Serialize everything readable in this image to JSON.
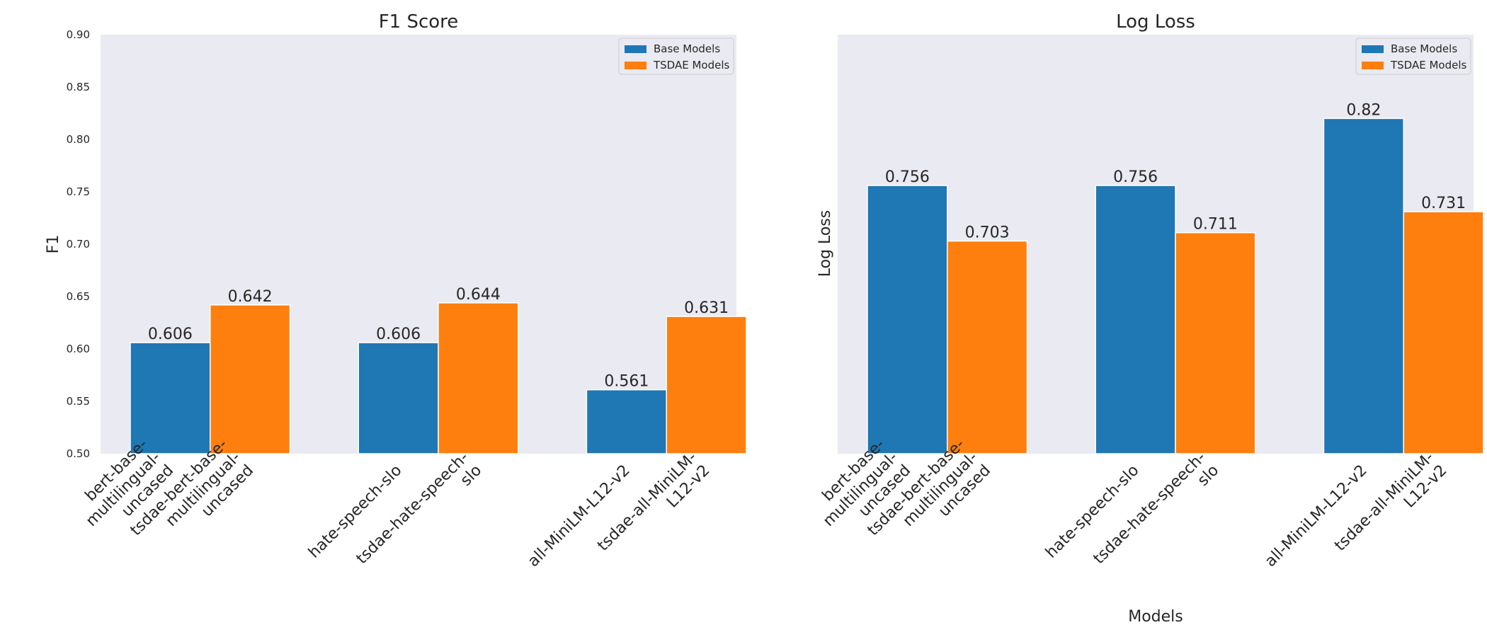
{
  "colors": {
    "base": "#1f77b4",
    "tsdae": "#ff7f0e",
    "panel": "#eaeaf2"
  },
  "chart_data": [
    {
      "type": "bar",
      "title": "F1 Score",
      "xlabel": "",
      "ylabel": "F1",
      "ylim": [
        0.5,
        0.9
      ],
      "yticks": [
        "0.50",
        "0.55",
        "0.60",
        "0.65",
        "0.70",
        "0.75",
        "0.80",
        "0.85",
        "0.90"
      ],
      "show_yticks": true,
      "grid": false,
      "legend_position": "top-right",
      "groups": [
        {
          "base_label": "bert-base-multilingual-uncased",
          "tsdae_label": "tsdae-bert-base-multilingual-uncased"
        },
        {
          "base_label": "hate-speech-slo",
          "tsdae_label": "tsdae-hate-speech-slo"
        },
        {
          "base_label": "all-MiniLM-L12-v2",
          "tsdae_label": "tsdae-all-MiniLM-L12-v2"
        }
      ],
      "series": [
        {
          "name": "Base Models",
          "values": [
            0.606,
            0.606,
            0.561
          ],
          "labels": [
            "0.606",
            "0.606",
            "0.561"
          ]
        },
        {
          "name": "TSDAE Models",
          "values": [
            0.642,
            0.644,
            0.631
          ],
          "labels": [
            "0.642",
            "0.644",
            "0.631"
          ]
        }
      ]
    },
    {
      "type": "bar",
      "title": "Log Loss",
      "xlabel": "Models",
      "ylabel": "Log Loss",
      "ylim": [
        0.5,
        0.9
      ],
      "yticks": [],
      "show_yticks": false,
      "grid": false,
      "legend_position": "top-right",
      "groups": [
        {
          "base_label": "bert-base-multilingual-uncased",
          "tsdae_label": "tsdae-bert-base-multilingual-uncased"
        },
        {
          "base_label": "hate-speech-slo",
          "tsdae_label": "tsdae-hate-speech-slo"
        },
        {
          "base_label": "all-MiniLM-L12-v2",
          "tsdae_label": "tsdae-all-MiniLM-L12-v2"
        }
      ],
      "series": [
        {
          "name": "Base Models",
          "values": [
            0.756,
            0.756,
            0.82
          ],
          "labels": [
            "0.756",
            "0.756",
            "0.82"
          ]
        },
        {
          "name": "TSDAE Models",
          "values": [
            0.703,
            0.711,
            0.731
          ],
          "labels": [
            "0.703",
            "0.711",
            "0.731"
          ]
        }
      ]
    }
  ]
}
